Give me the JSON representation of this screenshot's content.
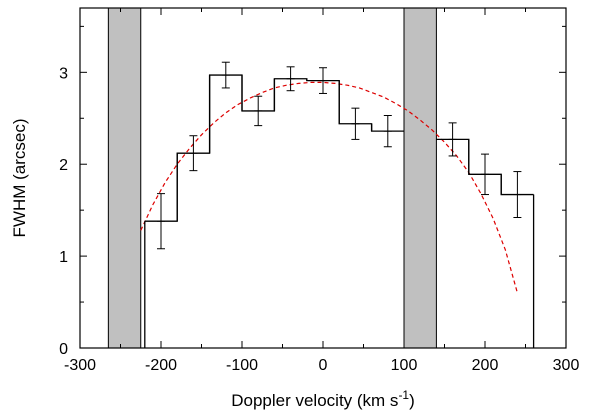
{
  "chart_data": {
    "type": "step-histogram",
    "xlabel": "Doppler velocity (km s",
    "xlabel_superscript": "-1",
    "xlabel_close": ")",
    "ylabel": "FWHM (arcsec)",
    "xlim": [
      -300,
      300
    ],
    "ylim": [
      0,
      3.7
    ],
    "x_ticks": [
      -300,
      -200,
      -100,
      0,
      100,
      200,
      300
    ],
    "y_ticks": [
      0,
      1,
      2,
      3
    ],
    "grid": false,
    "bins": [
      {
        "x0": -220,
        "x1": -180,
        "center": -200,
        "y": 1.38,
        "err": 0.3
      },
      {
        "x0": -180,
        "x1": -140,
        "center": -160,
        "y": 2.12,
        "err": 0.19
      },
      {
        "x0": -140,
        "x1": -100,
        "center": -120,
        "y": 2.97,
        "err": 0.14
      },
      {
        "x0": -100,
        "x1": -60,
        "center": -80,
        "y": 2.58,
        "err": 0.16
      },
      {
        "x0": -60,
        "x1": -20,
        "center": -40,
        "y": 2.93,
        "err": 0.13
      },
      {
        "x0": -20,
        "x1": 20,
        "center": 0,
        "y": 2.91,
        "err": 0.14
      },
      {
        "x0": 20,
        "x1": 60,
        "center": 40,
        "y": 2.44,
        "err": 0.17
      },
      {
        "x0": 60,
        "x1": 100,
        "center": 80,
        "y": 2.36,
        "err": 0.17
      },
      {
        "x0": 140,
        "x1": 180,
        "center": 160,
        "y": 2.27,
        "err": 0.18
      },
      {
        "x0": 180,
        "x1": 220,
        "center": 200,
        "y": 1.89,
        "err": 0.22
      },
      {
        "x0": 220,
        "x1": 260,
        "center": 240,
        "y": 1.67,
        "err": 0.25
      }
    ],
    "shaded_regions": [
      {
        "x0": -265,
        "x1": -225,
        "color": "#c0c0c0"
      },
      {
        "x0": 100,
        "x1": 140,
        "color": "#c0c0c0"
      }
    ],
    "fit_curve": {
      "style": "dashed",
      "color": "#dd0000",
      "points": [
        [
          -225,
          1.28
        ],
        [
          -210,
          1.56
        ],
        [
          -195,
          1.8
        ],
        [
          -180,
          2.0
        ],
        [
          -165,
          2.17
        ],
        [
          -150,
          2.32
        ],
        [
          -135,
          2.45
        ],
        [
          -120,
          2.56
        ],
        [
          -105,
          2.65
        ],
        [
          -90,
          2.72
        ],
        [
          -75,
          2.78
        ],
        [
          -60,
          2.83
        ],
        [
          -45,
          2.86
        ],
        [
          -30,
          2.88
        ],
        [
          -15,
          2.89
        ],
        [
          0,
          2.89
        ],
        [
          15,
          2.88
        ],
        [
          30,
          2.86
        ],
        [
          45,
          2.83
        ],
        [
          60,
          2.78
        ],
        [
          75,
          2.73
        ],
        [
          90,
          2.66
        ],
        [
          105,
          2.58
        ],
        [
          120,
          2.48
        ],
        [
          135,
          2.37
        ],
        [
          150,
          2.24
        ],
        [
          165,
          2.09
        ],
        [
          180,
          1.91
        ],
        [
          195,
          1.68
        ],
        [
          210,
          1.41
        ],
        [
          225,
          1.07
        ],
        [
          240,
          0.6
        ]
      ]
    },
    "colors": {
      "step_line": "#000000",
      "shade": "#c0c0c0",
      "fit": "#dd0000"
    }
  }
}
